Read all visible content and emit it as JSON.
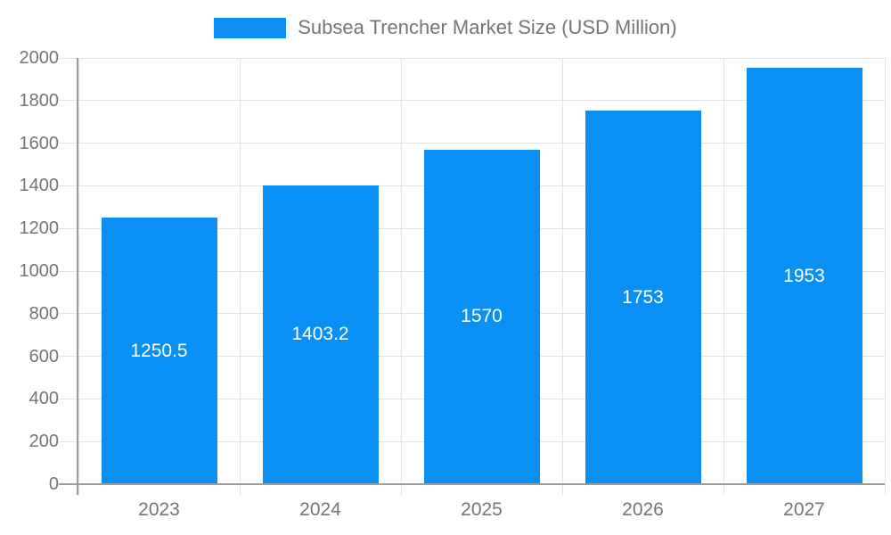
{
  "chart_data": {
    "type": "bar",
    "title": "Subsea Trencher Market Size (USD Million)",
    "legend_position": "top",
    "categories": [
      "2023",
      "2024",
      "2025",
      "2026",
      "2027"
    ],
    "series": [
      {
        "name": "Subsea Trencher Market Size (USD Million)",
        "values": [
          1250.5,
          1403.2,
          1570,
          1753,
          1953
        ],
        "labels": [
          "1250.5",
          "1403.2",
          "1570",
          "1753",
          "1953"
        ]
      }
    ],
    "xlabel": "",
    "ylabel": "",
    "ylim": [
      0,
      2000
    ],
    "yticks": [
      0,
      200,
      400,
      600,
      800,
      1000,
      1200,
      1400,
      1600,
      1800,
      2000
    ],
    "grid": true,
    "bar_label_position": "inside-center",
    "colors": {
      "bar": "#0A90F5",
      "bar_label": "#FFFFFF",
      "axis_text": "#757575",
      "grid_line": "#E4E4E4",
      "axis_line": "#9C9C9C",
      "background": "#FFFFFF"
    }
  }
}
